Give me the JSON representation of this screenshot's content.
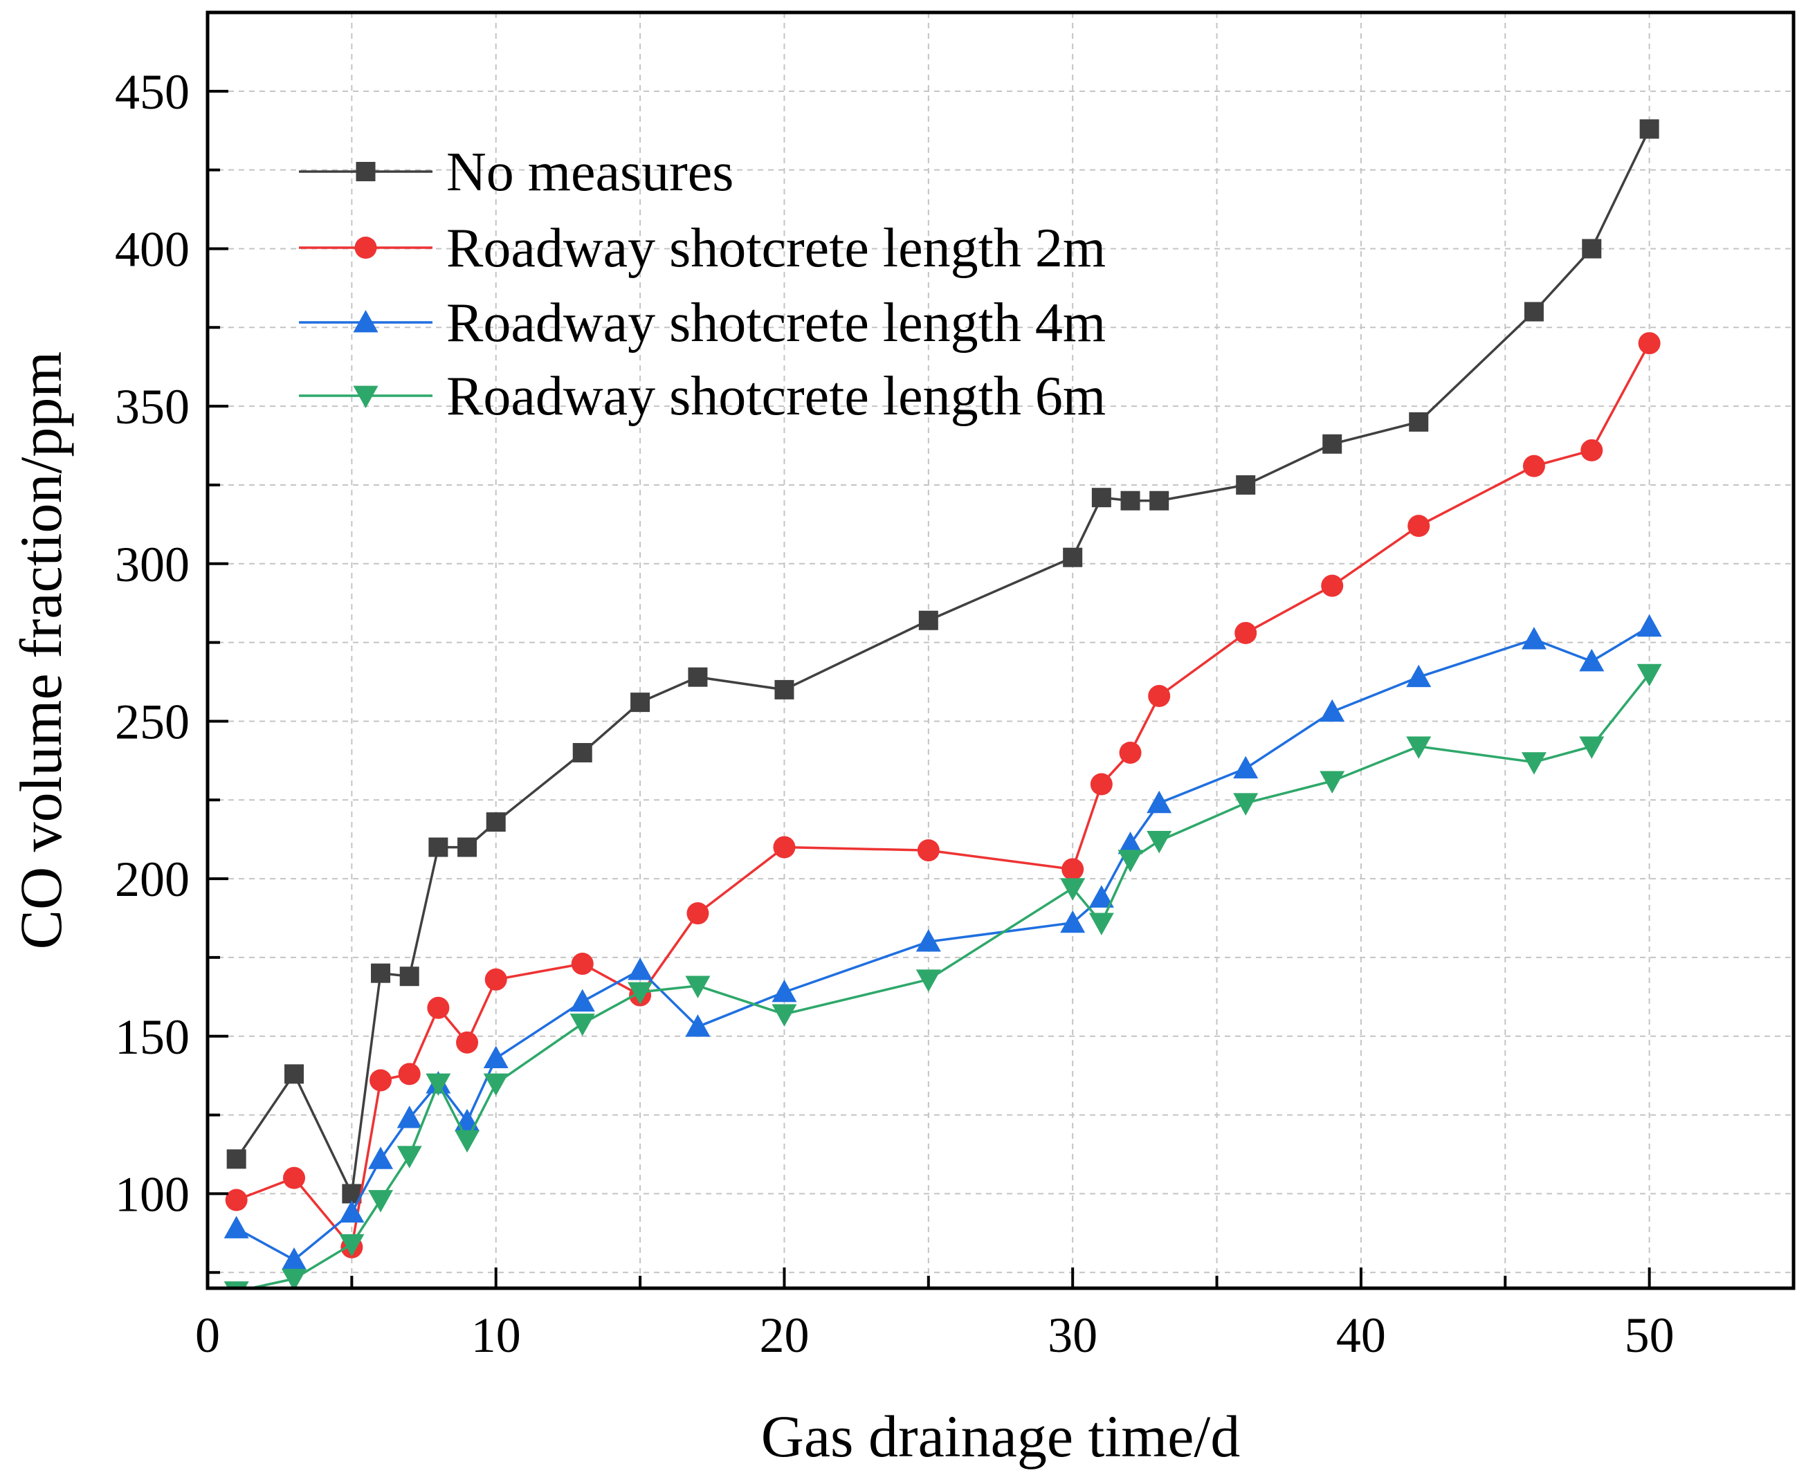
{
  "chart_data": {
    "type": "line",
    "title": "",
    "xlabel": "Gas drainage time/d",
    "ylabel": "CO volume fraction/ppm",
    "xlim": [
      0,
      55
    ],
    "ylim": [
      70,
      475
    ],
    "xticks": [
      0,
      10,
      20,
      30,
      40,
      50
    ],
    "yticks": [
      100,
      150,
      200,
      250,
      300,
      350,
      400,
      450
    ],
    "xtick_labels": [
      "0",
      "10",
      "20",
      "30",
      "40",
      "50"
    ],
    "ytick_labels": [
      "100",
      "150",
      "200",
      "250",
      "300",
      "350",
      "400",
      "450"
    ],
    "grid": true,
    "legend_position": "top-left",
    "series": [
      {
        "name": "No measures",
        "color": "#404040",
        "marker": "square",
        "x": [
          1,
          3,
          5,
          6,
          7,
          8,
          9,
          10,
          13,
          15,
          17,
          20,
          25,
          30,
          31,
          32,
          33,
          36,
          39,
          42,
          46,
          48,
          50
        ],
        "values": [
          111,
          138,
          100,
          170,
          169,
          210,
          210,
          218,
          240,
          256,
          264,
          260,
          282,
          302,
          321,
          320,
          320,
          325,
          338,
          345,
          380,
          400,
          438
        ]
      },
      {
        "name": "Roadway shotcrete length 2m",
        "color": "#ee3333",
        "marker": "circle",
        "x": [
          1,
          3,
          5,
          6,
          7,
          8,
          9,
          10,
          13,
          15,
          17,
          20,
          25,
          30,
          31,
          32,
          33,
          36,
          39,
          42,
          46,
          48,
          50
        ],
        "values": [
          98,
          105,
          83,
          136,
          138,
          159,
          148,
          168,
          173,
          163,
          189,
          210,
          209,
          203,
          230,
          240,
          258,
          278,
          293,
          312,
          331,
          336,
          370
        ]
      },
      {
        "name": "Roadway shotcrete length 4m",
        "color": "#1f6fe0",
        "marker": "triangle-up",
        "x": [
          1,
          3,
          5,
          6,
          7,
          8,
          9,
          10,
          13,
          15,
          17,
          20,
          25,
          30,
          31,
          32,
          33,
          36,
          39,
          42,
          46,
          48,
          50
        ],
        "values": [
          89,
          79,
          94,
          111,
          124,
          135,
          123,
          143,
          161,
          171,
          153,
          164,
          180,
          186,
          194,
          211,
          224,
          235,
          253,
          264,
          276,
          269,
          280
        ]
      },
      {
        "name": "Roadway shotcrete length 6m",
        "color": "#2ea86a",
        "marker": "triangle-down",
        "x": [
          1,
          3,
          5,
          6,
          7,
          8,
          9,
          10,
          13,
          15,
          17,
          20,
          25,
          30,
          31,
          32,
          33,
          36,
          39,
          42,
          46,
          48,
          50
        ],
        "values": [
          69,
          73,
          84,
          98,
          112,
          135,
          117,
          135,
          154,
          164,
          166,
          157,
          168,
          197,
          186,
          206,
          212,
          224,
          231,
          242,
          237,
          242,
          265
        ]
      }
    ]
  }
}
